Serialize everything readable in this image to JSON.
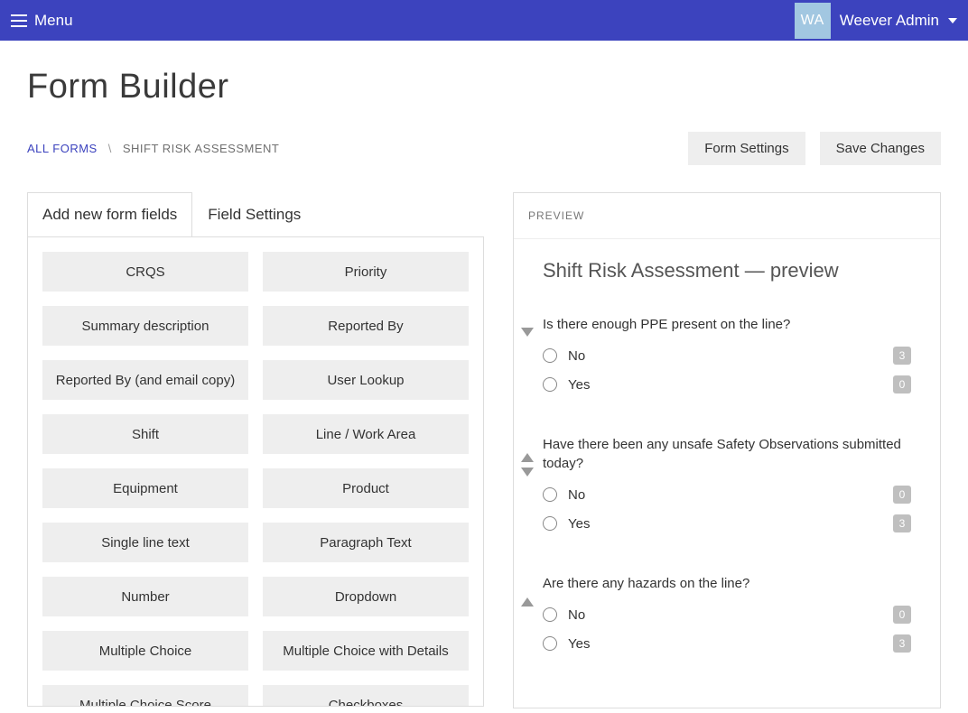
{
  "topbar": {
    "menu_label": "Menu",
    "avatar_initials": "WA",
    "username": "Weever Admin"
  },
  "page": {
    "title": "Form Builder"
  },
  "breadcrumb": {
    "root": "ALL FORMS",
    "separator": "\\",
    "current": "SHIFT RISK ASSESSMENT"
  },
  "actions": {
    "form_settings": "Form Settings",
    "save_changes": "Save Changes"
  },
  "tabs": {
    "add_fields": "Add new form fields",
    "field_settings": "Field Settings"
  },
  "field_types": [
    "CRQS",
    "Priority",
    "Summary description",
    "Reported By",
    "Reported By (and email copy)",
    "User Lookup",
    "Shift",
    "Line / Work Area",
    "Equipment",
    "Product",
    "Single line text",
    "Paragraph Text",
    "Number",
    "Dropdown",
    "Multiple Choice",
    "Multiple Choice with Details",
    "Multiple Choice Score",
    "Checkboxes"
  ],
  "preview": {
    "header": "PREVIEW",
    "title": "Shift Risk Assessment  —  preview",
    "questions": [
      {
        "text": "Is there enough PPE present on the line?",
        "show_up": false,
        "show_down": true,
        "options": [
          {
            "label": "No",
            "score": "3"
          },
          {
            "label": "Yes",
            "score": "0"
          }
        ]
      },
      {
        "text": "Have there been any unsafe Safety Observations submitted today?",
        "show_up": true,
        "show_down": true,
        "options": [
          {
            "label": "No",
            "score": "0"
          },
          {
            "label": "Yes",
            "score": "3"
          }
        ]
      },
      {
        "text": "Are there any hazards on the line?",
        "show_up": true,
        "show_down": false,
        "options": [
          {
            "label": "No",
            "score": "0"
          },
          {
            "label": "Yes",
            "score": "3"
          }
        ]
      }
    ]
  },
  "colors": {
    "primary": "#3c43be",
    "avatar_bg": "#a2c7e1",
    "tile_bg": "#eeeeee",
    "border": "#dddddd",
    "score_bg": "#bfbfbf"
  }
}
